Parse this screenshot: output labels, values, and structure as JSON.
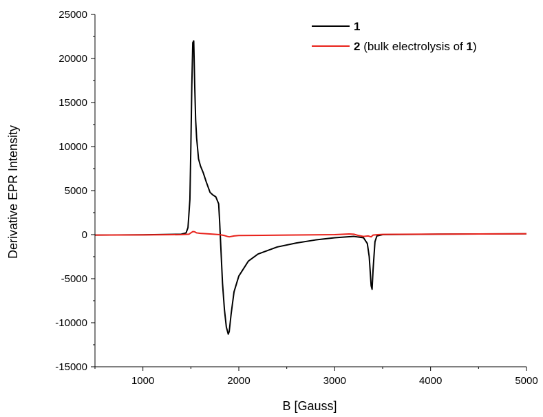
{
  "chart_data": {
    "type": "line",
    "title": "",
    "xlabel": "B [Gauss]",
    "ylabel": "Derivative EPR Intensity",
    "xlim": [
      500,
      5000
    ],
    "ylim": [
      -15000,
      25000
    ],
    "xticks": [
      1000,
      2000,
      3000,
      4000,
      5000
    ],
    "yticks": [
      -15000,
      -10000,
      -5000,
      0,
      5000,
      10000,
      15000,
      20000,
      25000
    ],
    "xtick_labels": [
      "1000",
      "2000",
      "3000",
      "4000",
      "5000"
    ],
    "ytick_labels": [
      "-15000",
      "-10000",
      "-5000",
      "0",
      "5000",
      "10000",
      "15000",
      "20000",
      "25000"
    ],
    "grid": false,
    "legend_position": "top-right",
    "legend": [
      {
        "name_bold": "1",
        "name_rest": "",
        "name_tail_bold": ""
      },
      {
        "name_bold": "2",
        "name_rest": " (bulk electrolysis of ",
        "name_tail_bold": "1",
        "name_end": ")"
      }
    ],
    "series": [
      {
        "name": "1",
        "color": "#000000",
        "x": [
          500,
          1000,
          1400,
          1450,
          1470,
          1490,
          1500,
          1510,
          1520,
          1530,
          1540,
          1550,
          1560,
          1580,
          1600,
          1630,
          1660,
          1700,
          1730,
          1760,
          1790,
          1800,
          1815,
          1830,
          1850,
          1870,
          1890,
          1900,
          1920,
          1950,
          2000,
          2100,
          2200,
          2400,
          2600,
          2800,
          3000,
          3200,
          3300,
          3340,
          3360,
          3380,
          3390,
          3400,
          3420,
          3440,
          3500,
          4000,
          4500,
          5000
        ],
        "y": [
          -50,
          -20,
          50,
          200,
          800,
          4000,
          10000,
          17000,
          21800,
          22000,
          17000,
          13000,
          11000,
          8600,
          7800,
          7000,
          6000,
          4800,
          4500,
          4300,
          3500,
          1500,
          -2000,
          -5500,
          -8500,
          -10500,
          -11300,
          -11000,
          -9000,
          -6500,
          -4700,
          -3000,
          -2200,
          -1400,
          -950,
          -600,
          -350,
          -200,
          -350,
          -1000,
          -2500,
          -5800,
          -6200,
          -4000,
          -800,
          -150,
          0,
          50,
          80,
          100
        ]
      },
      {
        "name": "2",
        "color": "#e8211a",
        "x": [
          500,
          1000,
          1400,
          1480,
          1500,
          1520,
          1540,
          1560,
          1600,
          1700,
          1800,
          1850,
          1880,
          1900,
          1950,
          2000,
          2500,
          3000,
          3150,
          3200,
          3250,
          3300,
          3350,
          3380,
          3400,
          3450,
          3500,
          4000,
          5000
        ],
        "y": [
          -50,
          -30,
          0,
          50,
          200,
          350,
          320,
          200,
          150,
          80,
          0,
          -100,
          -200,
          -250,
          -150,
          -100,
          -50,
          0,
          80,
          50,
          -100,
          -200,
          -150,
          -250,
          -50,
          0,
          30,
          60,
          100
        ]
      }
    ]
  }
}
